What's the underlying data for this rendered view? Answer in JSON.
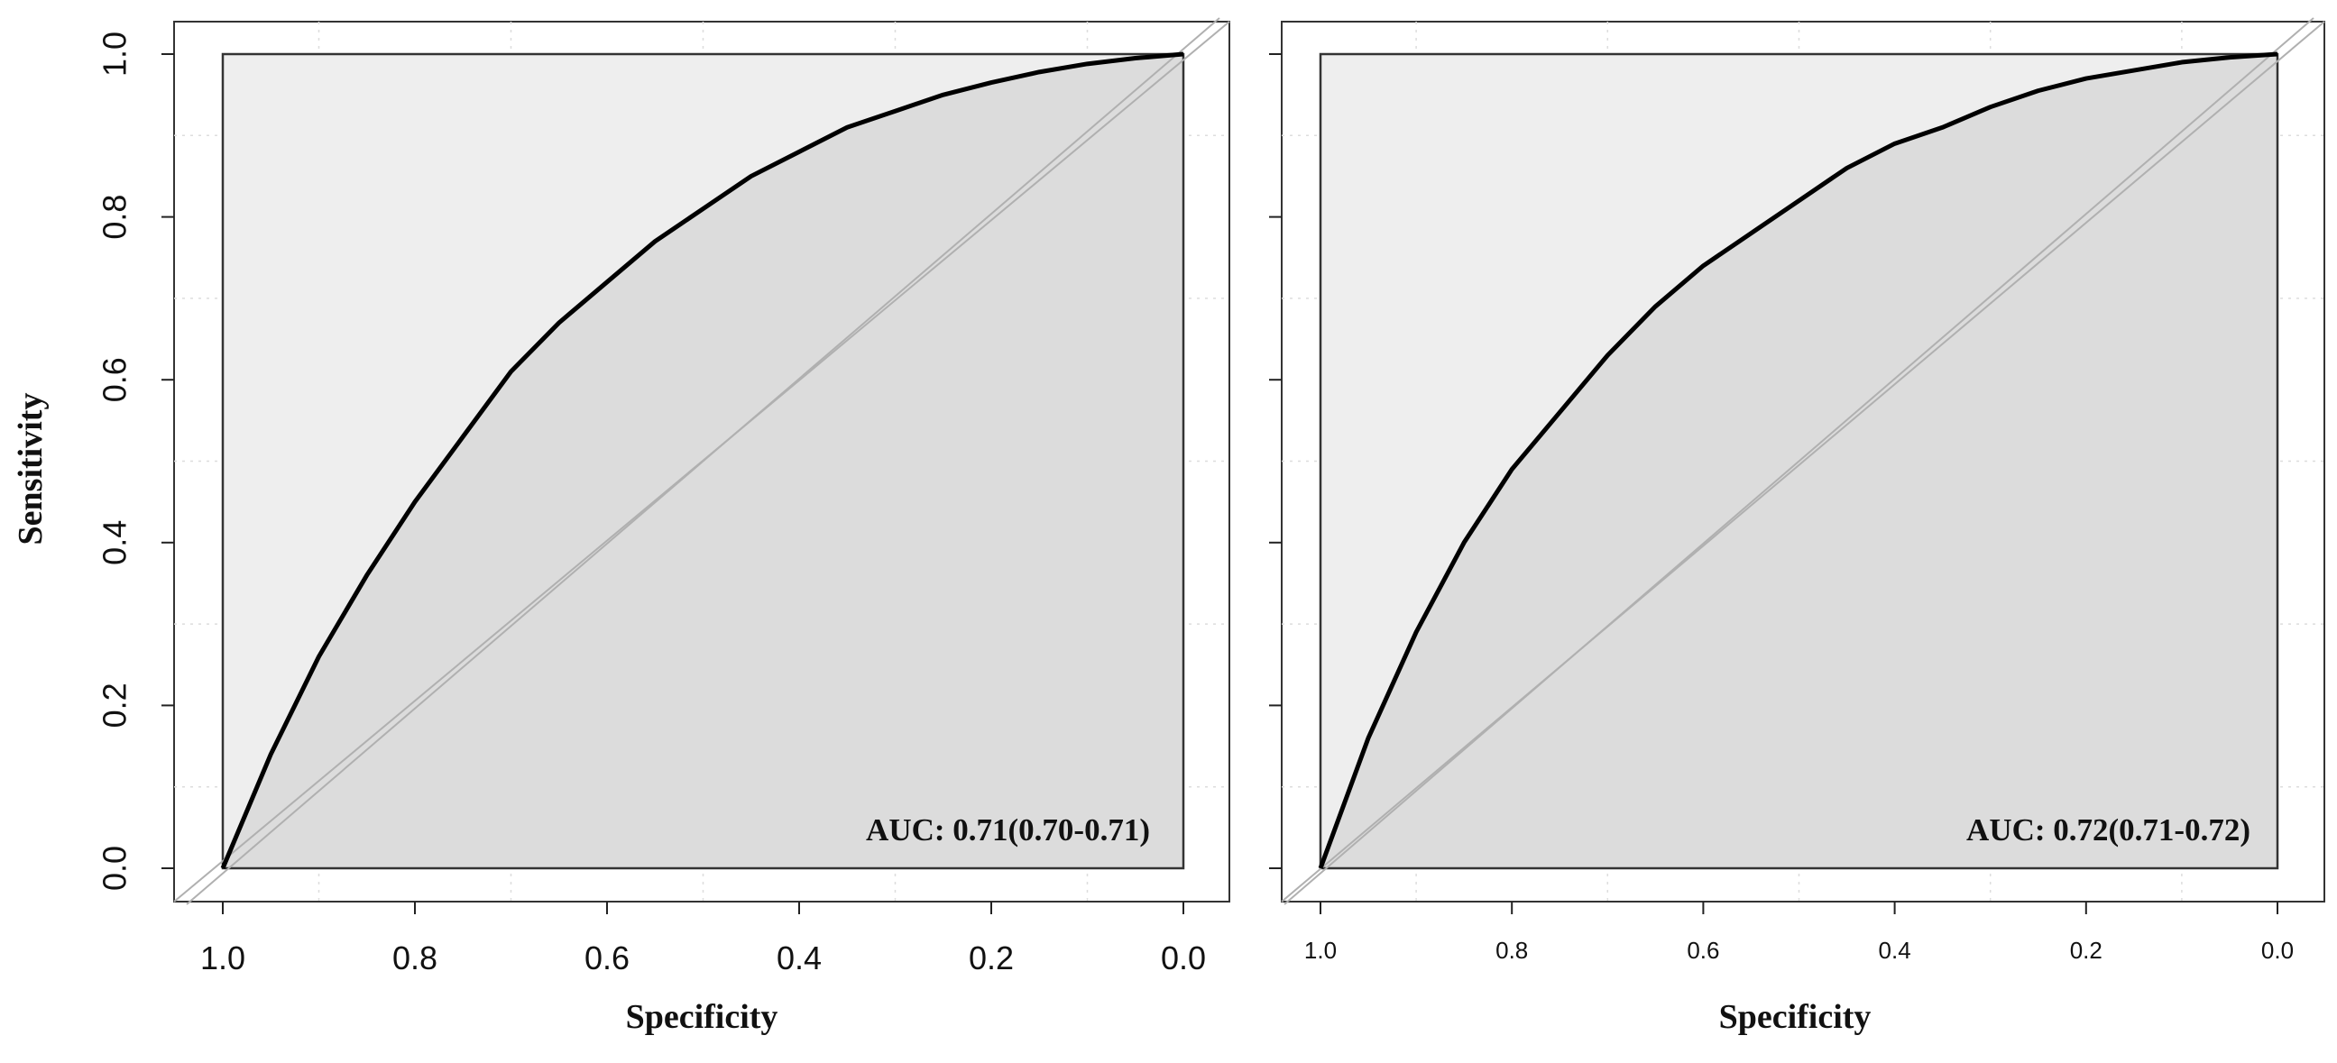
{
  "chart_data": [
    {
      "type": "line",
      "xlabel": "Specificity",
      "ylabel": "Sensitivity",
      "xlim": [
        1.0,
        0.0
      ],
      "ylim": [
        0.0,
        1.0
      ],
      "x_reversed": true,
      "xticks": [
        "1.0",
        "0.8",
        "0.6",
        "0.4",
        "0.2",
        "0.0"
      ],
      "yticks": [
        "0.0",
        "0.2",
        "0.4",
        "0.6",
        "0.8",
        "1.0"
      ],
      "grid": true,
      "annotation": "AUC: 0.71(0.70-0.71)",
      "series": [
        {
          "x": [
            1.0,
            0.95,
            0.9,
            0.85,
            0.8,
            0.75,
            0.7,
            0.65,
            0.6,
            0.55,
            0.5,
            0.45,
            0.4,
            0.35,
            0.3,
            0.25,
            0.2,
            0.15,
            0.1,
            0.05,
            0.0
          ],
          "y": [
            0.0,
            0.14,
            0.26,
            0.36,
            0.45,
            0.53,
            0.61,
            0.67,
            0.72,
            0.77,
            0.81,
            0.85,
            0.88,
            0.91,
            0.93,
            0.95,
            0.965,
            0.978,
            0.988,
            0.995,
            1.0
          ]
        }
      ]
    },
    {
      "type": "line",
      "xlabel": "Specificity",
      "ylabel": "",
      "xlim": [
        1.0,
        0.0
      ],
      "ylim": [
        0.0,
        1.0
      ],
      "x_reversed": true,
      "xticks": [
        "1.0",
        "0.8",
        "0.6",
        "0.4",
        "0.2",
        "0.0"
      ],
      "yticks": [],
      "grid": true,
      "annotation": "AUC: 0.72(0.71-0.72)",
      "series": [
        {
          "x": [
            1.0,
            0.95,
            0.9,
            0.85,
            0.8,
            0.75,
            0.7,
            0.65,
            0.6,
            0.55,
            0.5,
            0.45,
            0.4,
            0.35,
            0.3,
            0.25,
            0.2,
            0.15,
            0.1,
            0.05,
            0.0
          ],
          "y": [
            0.0,
            0.16,
            0.29,
            0.4,
            0.49,
            0.56,
            0.63,
            0.69,
            0.74,
            0.78,
            0.82,
            0.86,
            0.89,
            0.91,
            0.935,
            0.955,
            0.97,
            0.98,
            0.99,
            0.996,
            1.0
          ]
        }
      ]
    }
  ]
}
